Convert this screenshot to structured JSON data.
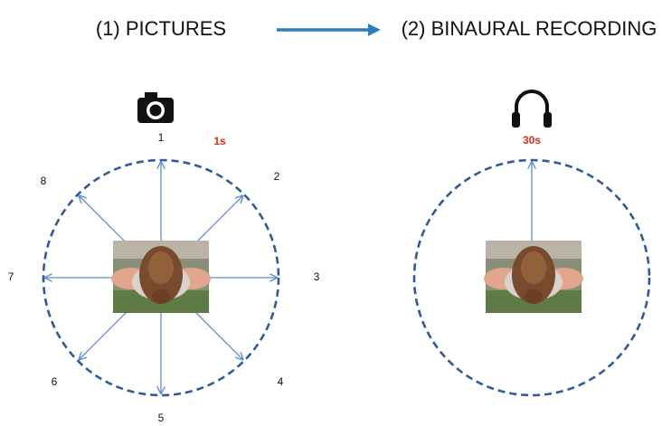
{
  "titles": {
    "step1": "(1) PICTURES",
    "step2": "(2) BINAURAL RECORDING"
  },
  "directions": [
    "1",
    "2",
    "3",
    "4",
    "5",
    "6",
    "7",
    "8"
  ],
  "durations": {
    "pictures": "1s",
    "recording": "30s"
  }
}
